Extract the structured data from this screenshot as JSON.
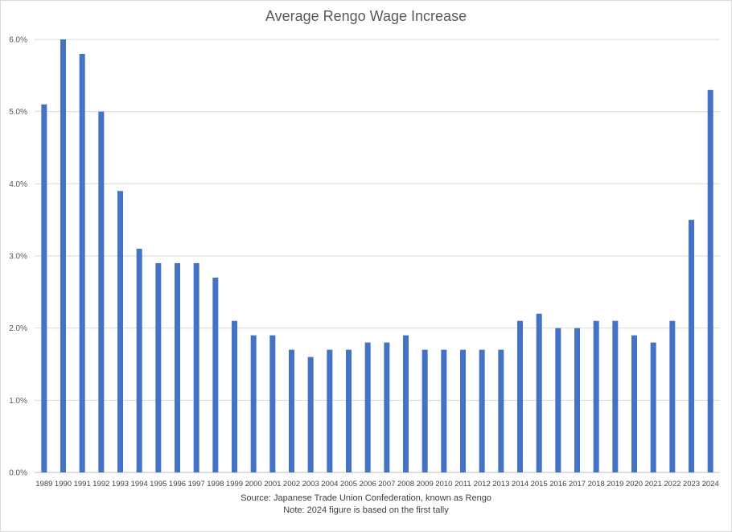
{
  "chart_data": {
    "type": "bar",
    "title": "Average Rengo Wage Increase",
    "categories": [
      "1989",
      "1990",
      "1991",
      "1992",
      "1993",
      "1994",
      "1995",
      "1996",
      "1997",
      "1998",
      "1999",
      "2000",
      "2001",
      "2002",
      "2003",
      "2004",
      "2005",
      "2006",
      "2007",
      "2008",
      "2009",
      "2010",
      "2011",
      "2012",
      "2013",
      "2014",
      "2015",
      "2016",
      "2017",
      "2018",
      "2019",
      "2020",
      "2021",
      "2022",
      "2023",
      "2024"
    ],
    "values": [
      5.1,
      6.0,
      5.8,
      5.0,
      3.9,
      3.1,
      2.9,
      2.9,
      2.9,
      2.7,
      2.1,
      1.9,
      1.9,
      1.7,
      1.6,
      1.7,
      1.7,
      1.8,
      1.8,
      1.9,
      1.7,
      1.7,
      1.7,
      1.7,
      1.7,
      2.1,
      2.2,
      2.0,
      2.0,
      2.1,
      2.1,
      1.9,
      1.8,
      2.1,
      3.5,
      5.3
    ],
    "yticks": [
      "0.0%",
      "1.0%",
      "2.0%",
      "3.0%",
      "4.0%",
      "5.0%",
      "6.0%"
    ],
    "ylim": [
      0,
      6
    ],
    "grid": true,
    "bar_color": "#4472c4",
    "xlabel": "",
    "ylabel": ""
  },
  "notes": {
    "source": "Source: Japanese Trade Union Confederation, known as Rengo",
    "footnote": "Note:  2024 figure is based on the first tally"
  }
}
